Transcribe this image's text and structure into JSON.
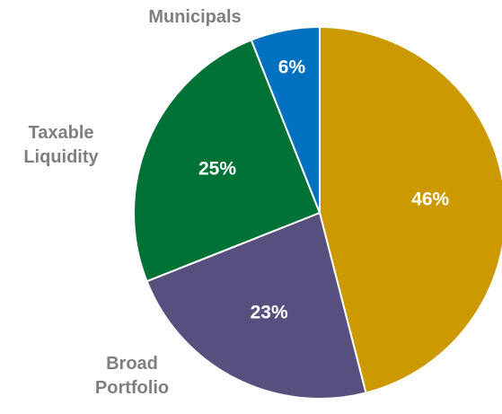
{
  "chart_data": {
    "type": "pie",
    "title": "",
    "start_angle_deg": 0,
    "direction": "clockwise",
    "slices": [
      {
        "label": "",
        "value": 46,
        "value_label": "46%",
        "color": "#CC9900"
      },
      {
        "label": "Broad Portfolio",
        "label_lines": [
          "Broad",
          "Portfolio"
        ],
        "value": 23,
        "value_label": "23%",
        "color": "#57507E"
      },
      {
        "label": "Taxable Liquidity",
        "label_lines": [
          "Taxable",
          "Liquidity"
        ],
        "value": 25,
        "value_label": "25%",
        "color": "#007236"
      },
      {
        "label": "Municipals",
        "label_lines": [
          "Municipals"
        ],
        "value": 6,
        "value_label": "6%",
        "color": "#0070C0"
      }
    ],
    "legend": "none",
    "slice_border_color": "#ffffff"
  }
}
